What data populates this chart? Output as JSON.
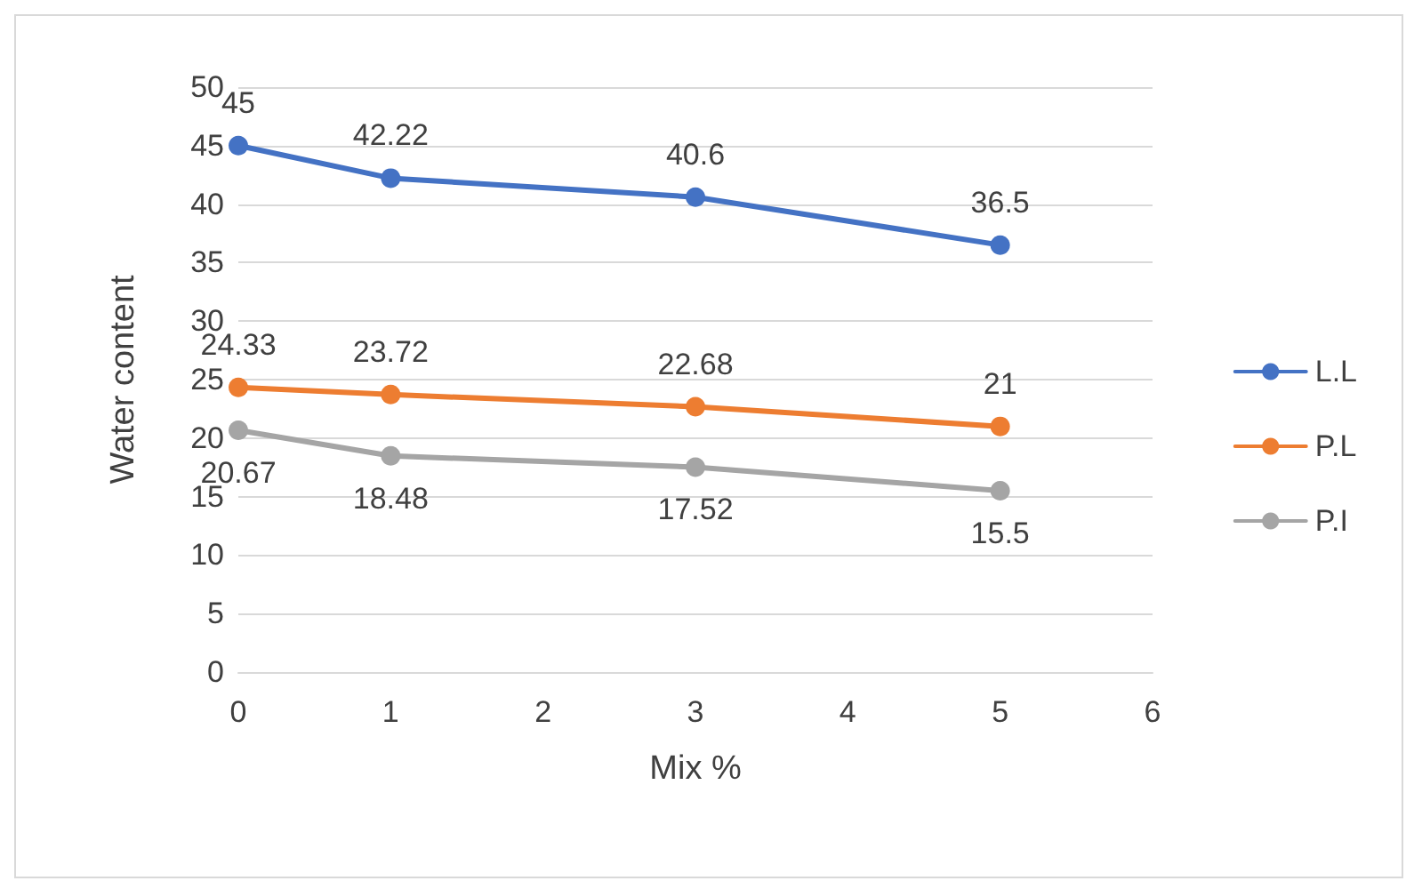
{
  "chart_data": {
    "type": "line",
    "xlabel": "Mix %",
    "ylabel": "Water content",
    "x": [
      0,
      1,
      3,
      5
    ],
    "series": [
      {
        "name": "L.L",
        "color": "#4472c4",
        "values": [
          45,
          42.22,
          40.6,
          36.5
        ]
      },
      {
        "name": "P.L",
        "color": "#ed7d31",
        "values": [
          24.33,
          23.72,
          22.68,
          21
        ]
      },
      {
        "name": "P.I",
        "color": "#a5a5a5",
        "values": [
          20.67,
          18.48,
          17.52,
          15.5
        ]
      }
    ],
    "xlim": [
      0,
      6
    ],
    "xticks": [
      0,
      1,
      2,
      3,
      4,
      5,
      6
    ],
    "ylim": [
      0,
      50
    ],
    "yticks": [
      0,
      5,
      10,
      15,
      20,
      25,
      30,
      35,
      40,
      45,
      50
    ],
    "grid": "y",
    "legend": "right",
    "marker": "circle",
    "line_style": "solid",
    "data_labels": true
  }
}
